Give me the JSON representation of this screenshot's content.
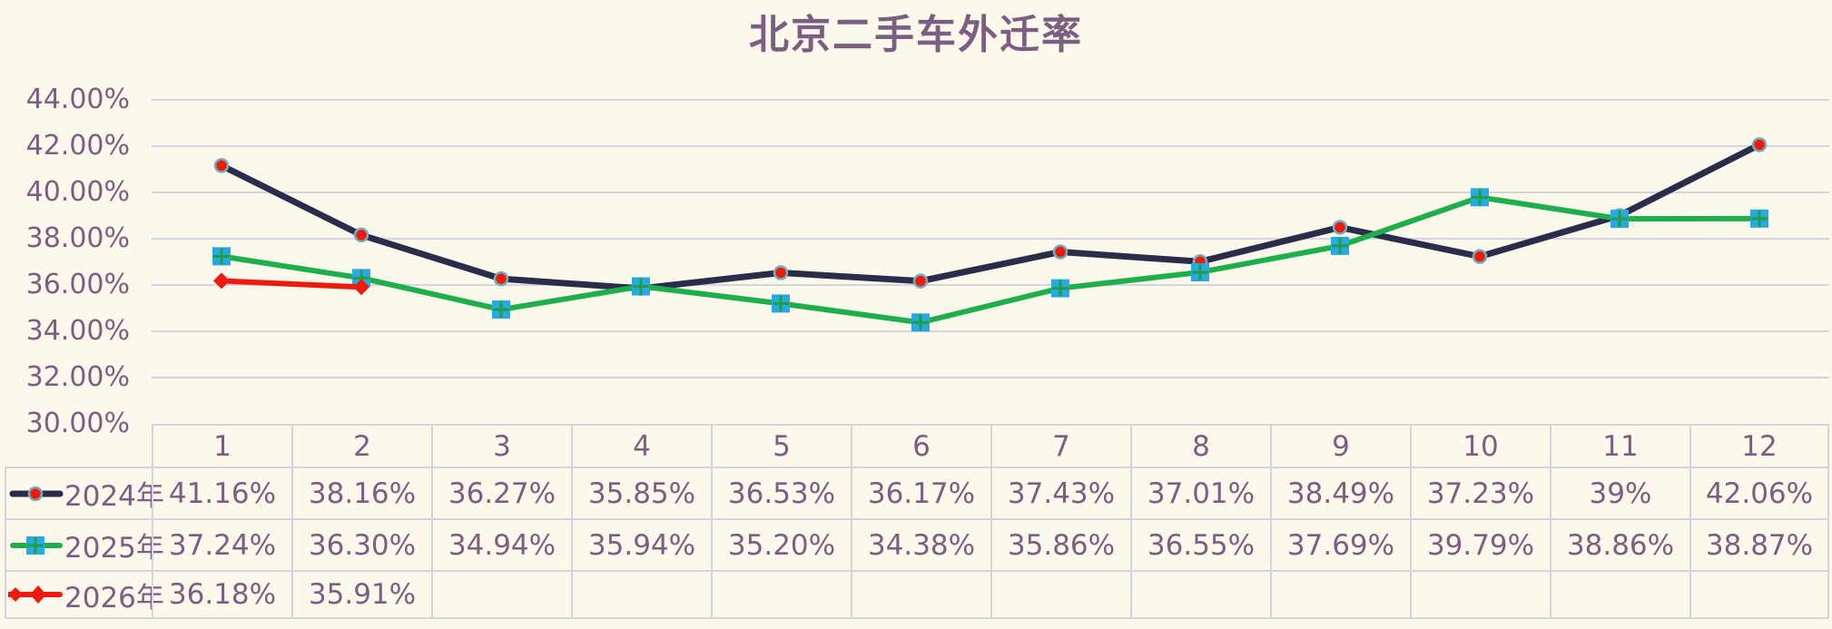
{
  "title": "北京二手车外迁率",
  "colors": {
    "background": "#FDF8EC",
    "text": "#7C5E80",
    "gridline": "#DAD2E2",
    "table_border": "#D8D2DD",
    "series_2024_line": "#292D49",
    "series_2024_marker_fill": "#EE1A0E",
    "series_2024_marker_ring": "#74AEB8",
    "series_2025_line": "#1FAE4C",
    "series_2025_marker_fill": "#29A9E1",
    "series_2025_marker_cross": "#1F9E43",
    "series_2026_line": "#EE1A0E",
    "series_2026_marker_fill": "#EE1A0E"
  },
  "chart_data": {
    "type": "line",
    "title": "北京二手车外迁率",
    "categories": [
      "1",
      "2",
      "3",
      "4",
      "5",
      "6",
      "7",
      "8",
      "9",
      "10",
      "11",
      "12"
    ],
    "series": [
      {
        "name": "2024年",
        "values": [
          41.16,
          38.16,
          36.27,
          35.85,
          36.53,
          36.17,
          37.43,
          37.01,
          38.49,
          37.23,
          39,
          42.06
        ],
        "line_color": "#292D49",
        "marker": "circle",
        "marker_fill": "#EE1A0E",
        "marker_ring": "#74AEB8"
      },
      {
        "name": "2025年",
        "values": [
          37.24,
          36.3,
          34.94,
          35.94,
          35.2,
          34.38,
          35.86,
          36.55,
          37.69,
          39.79,
          38.86,
          38.87
        ],
        "line_color": "#1FAE4C",
        "marker": "square-cross",
        "marker_fill": "#29A9E1",
        "marker_cross": "#1F9E43"
      },
      {
        "name": "2026年",
        "values": [
          36.18,
          35.91
        ],
        "line_color": "#EE1A0E",
        "marker": "diamond",
        "marker_fill": "#EE1A0E"
      }
    ],
    "ylim": [
      30,
      44
    ],
    "ytick_step": 2,
    "ytick_labels": [
      "44.00%",
      "42.00%",
      "40.00%",
      "38.00%",
      "36.00%",
      "34.00%",
      "32.00%",
      "30.00%"
    ],
    "grid": true,
    "legend_position": "left-of-data-table"
  },
  "table": {
    "header": [
      "1",
      "2",
      "3",
      "4",
      "5",
      "6",
      "7",
      "8",
      "9",
      "10",
      "11",
      "12"
    ],
    "rows": [
      {
        "label": "2024年",
        "values": [
          "41.16%",
          "38.16%",
          "36.27%",
          "35.85%",
          "36.53%",
          "36.17%",
          "37.43%",
          "37.01%",
          "38.49%",
          "37.23%",
          "39%",
          "42.06%"
        ]
      },
      {
        "label": "2025年",
        "values": [
          "37.24%",
          "36.30%",
          "34.94%",
          "35.94%",
          "35.20%",
          "34.38%",
          "35.86%",
          "36.55%",
          "37.69%",
          "39.79%",
          "38.86%",
          "38.87%"
        ]
      },
      {
        "label": "2026年",
        "values": [
          "36.18%",
          "35.91%",
          "",
          "",
          "",
          "",
          "",
          "",
          "",
          "",
          "",
          ""
        ]
      }
    ]
  }
}
